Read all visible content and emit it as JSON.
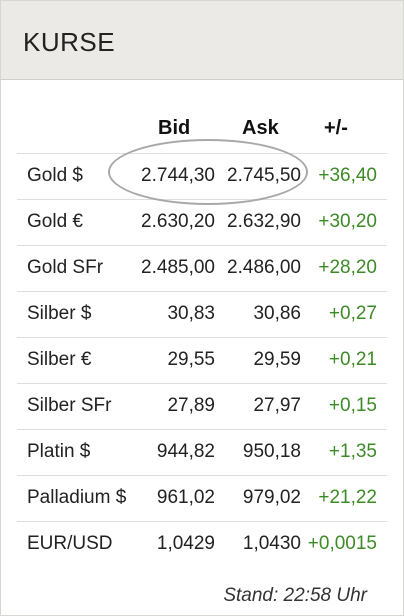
{
  "header": {
    "title": "KURSE"
  },
  "columns": {
    "bid": "Bid",
    "ask": "Ask",
    "change": "+/-"
  },
  "rows": [
    {
      "name": "Gold $",
      "bid": "2.744,30",
      "ask": "2.745,50",
      "change": "+36,40"
    },
    {
      "name": "Gold €",
      "bid": "2.630,20",
      "ask": "2.632,90",
      "change": "+30,20"
    },
    {
      "name": "Gold SFr",
      "bid": "2.485,00",
      "ask": "2.486,00",
      "change": "+28,20"
    },
    {
      "name": "Silber $",
      "bid": "30,83",
      "ask": "30,86",
      "change": "+0,27"
    },
    {
      "name": "Silber €",
      "bid": "29,55",
      "ask": "29,59",
      "change": "+0,21"
    },
    {
      "name": "Silber SFr",
      "bid": "27,89",
      "ask": "27,97",
      "change": "+0,15"
    },
    {
      "name": "Platin $",
      "bid": "944,82",
      "ask": "950,18",
      "change": "+1,35"
    },
    {
      "name": "Palladium $",
      "bid": "961,02",
      "ask": "979,02",
      "change": "+21,22"
    },
    {
      "name": "EUR/USD",
      "bid": "1,0429",
      "ask": "1,0430",
      "change": "+0,0015"
    }
  ],
  "footer": {
    "stand": "Stand: 22:58 Uhr"
  },
  "colors": {
    "positive": "#3d8b27",
    "header_bg": "#eceae6",
    "ring": "#a9a9a9"
  }
}
